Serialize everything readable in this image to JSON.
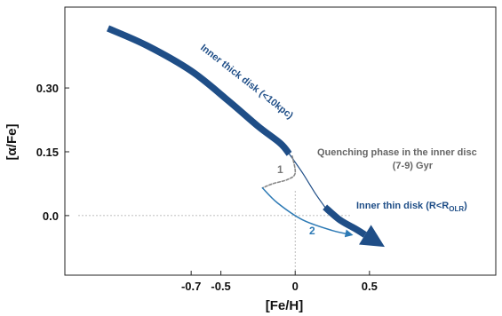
{
  "chart_data": {
    "type": "line",
    "xlabel": "[Fe/H]",
    "ylabel": "[α/Fe]",
    "x_ticks": [
      {
        "value": -0.7,
        "label": "-0.7"
      },
      {
        "value": -0.5,
        "label": "-0.5"
      },
      {
        "value": 0,
        "label": "0"
      },
      {
        "value": 0.5,
        "label": "0.5"
      }
    ],
    "y_ticks": [
      {
        "value": 0.0,
        "label": "0.0"
      },
      {
        "value": 0.15,
        "label": "0.15"
      },
      {
        "value": 0.3,
        "label": "0.30"
      }
    ],
    "xlim": [
      -1.55,
      1.35
    ],
    "ylim": [
      -0.14,
      0.49
    ],
    "grid": false,
    "reference_lines": {
      "x": 0,
      "y": 0
    },
    "series": [
      {
        "key": "thick",
        "color": "#1f4e87",
        "x": [
          -1.26,
          -1.0,
          -0.7,
          -0.45,
          -0.25,
          -0.1,
          -0.04
        ],
        "y": [
          0.44,
          0.4,
          0.34,
          0.27,
          0.21,
          0.17,
          0.145
        ]
      },
      {
        "key": "quench",
        "color": "#1f4e87",
        "x": [
          -0.04,
          0.05,
          0.13,
          0.2
        ],
        "y": [
          0.145,
          0.1,
          0.055,
          0.02
        ]
      },
      {
        "key": "thin",
        "color": "#1f4e87",
        "x": [
          0.2,
          0.3,
          0.4,
          0.47
        ],
        "y": [
          0.02,
          -0.01,
          -0.03,
          -0.045
        ]
      },
      {
        "key": "path1",
        "color": "#888888",
        "x": [
          -0.02,
          0.0,
          -0.05,
          -0.15,
          -0.22
        ],
        "y": [
          0.14,
          0.1,
          0.085,
          0.075,
          0.065
        ]
      },
      {
        "key": "path2",
        "color": "#2d7ab5",
        "x": [
          -0.22,
          -0.12,
          0.05,
          0.25,
          0.38
        ],
        "y": [
          0.065,
          0.03,
          -0.01,
          -0.035,
          -0.045
        ]
      }
    ],
    "annotations": {
      "thick_label": "Inner thick disk (<10kpc)",
      "quench_label_1": "Quenching phase in the inner disc",
      "quench_label_2": "(7-9) Gyr",
      "thin_label": "Inner thin disk (R<R",
      "thin_label_sub": "OLR",
      "thin_label_close": ")",
      "path1_label": "1",
      "path2_label": "2"
    }
  }
}
